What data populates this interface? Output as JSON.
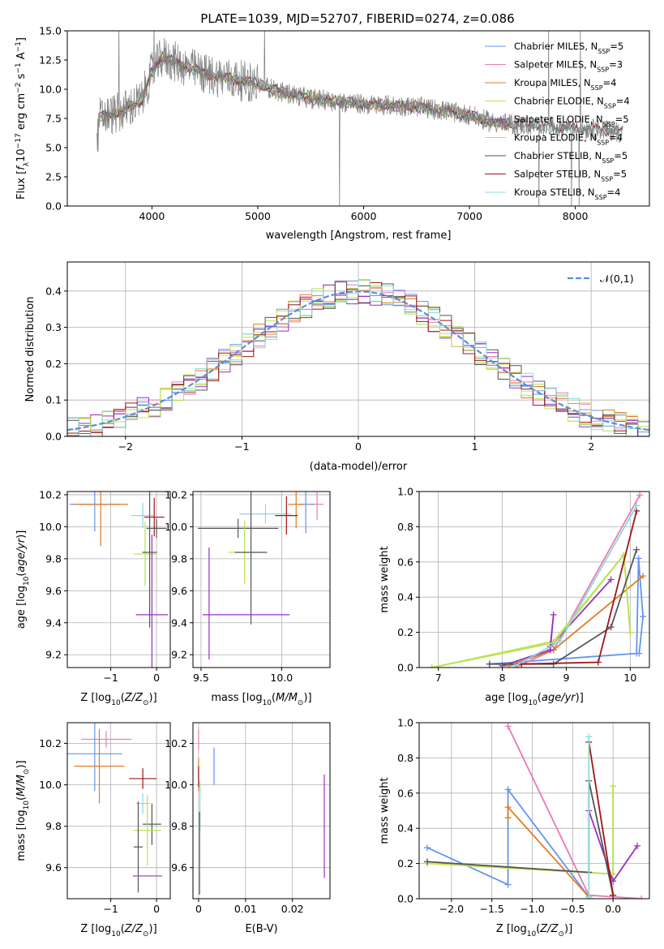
{
  "figure_title": "PLATE=1039, MJD=52707, FIBERID=0274, z=0.086",
  "series": [
    {
      "name": "Chabrier MILES",
      "nssp": "5",
      "color": "#6495ed"
    },
    {
      "name": "Salpeter MILES",
      "nssp": "3",
      "color": "#e87bb4"
    },
    {
      "name": "Kroupa MILES",
      "nssp": "4",
      "color": "#e07b26"
    },
    {
      "name": "Chabrier ELODIE",
      "nssp": "4",
      "color": "#c5e45a"
    },
    {
      "name": "Salpeter ELODIE",
      "nssp": "5",
      "color": "#9a32c0"
    },
    {
      "name": "Kroupa ELODIE",
      "nssp": "4",
      "color": "#b6e34e"
    },
    {
      "name": "Chabrier STELIB",
      "nssp": "5",
      "color": "#555555"
    },
    {
      "name": "Salpeter STELIB",
      "nssp": "5",
      "color": "#a01418"
    },
    {
      "name": "Kroupa STELIB",
      "nssp": "4",
      "color": "#8fd8dc"
    }
  ],
  "chart_data": [
    {
      "type": "line",
      "id": "spectrum",
      "title": "PLATE=1039, MJD=52707, FIBERID=0274, z=0.086",
      "xlabel": "wavelength [Angstrom, rest frame]",
      "ylabel": "Flux [f_λ 10^-17 erg cm^-2 s^-1 A^-1]",
      "xlim": [
        3200,
        8700
      ],
      "ylim": [
        0,
        15
      ],
      "xticks": [
        4000,
        5000,
        6000,
        7000,
        8000
      ],
      "yticks": [
        0.0,
        2.5,
        5.0,
        7.5,
        10.0,
        12.5,
        15.0
      ],
      "grid": false,
      "legend": "top-right",
      "data_envelope": {
        "x": [
          3500,
          3700,
          3900,
          4000,
          4100,
          4300,
          4500,
          4800,
          5000,
          5200,
          5500,
          5800,
          6000,
          6300,
          6500,
          6800,
          7000,
          7200,
          7400,
          7700,
          8000,
          8300,
          8450
        ],
        "y": [
          7.6,
          8.0,
          9.0,
          11.5,
          12.8,
          12.0,
          11.3,
          10.8,
          10.5,
          9.8,
          9.2,
          8.9,
          8.7,
          8.6,
          8.5,
          8.1,
          7.8,
          7.2,
          7.0,
          6.8,
          6.7,
          6.5,
          6.3
        ]
      }
    },
    {
      "type": "bar",
      "id": "residuals",
      "xlabel": "(data-model)/error",
      "ylabel": "Normed distribution",
      "xlim": [
        -2.5,
        2.5
      ],
      "ylim": [
        0,
        0.48
      ],
      "xticks": [
        -2,
        -1,
        0,
        1,
        2
      ],
      "yticks": [
        0.0,
        0.1,
        0.2,
        0.3,
        0.4
      ],
      "grid": true,
      "legend": "top-right",
      "reference_label": "N(0,1)",
      "bin_width": 0.1
    },
    {
      "type": "scatter",
      "id": "age_vs_Z",
      "xlabel": "Z [log10(Z/Z_sun)]",
      "ylabel": "age [log10(age/yr)]",
      "xlim": [
        -1.95,
        0.3
      ],
      "ylim": [
        9.12,
        10.22
      ],
      "xticks": [
        -1,
        0
      ],
      "yticks": [
        9.2,
        9.4,
        9.6,
        9.8,
        10.0,
        10.2
      ],
      "grid": true,
      "points": [
        {
          "series": "Chabrier MILES",
          "x": -1.35,
          "xerr": 0.55,
          "y": 10.14,
          "yerr": 0.17
        },
        {
          "series": "Kroupa MILES",
          "x": -1.22,
          "xerr": 0.6,
          "y": 10.14,
          "yerr": 0.26
        },
        {
          "series": "Kroupa STELIB",
          "x": -0.3,
          "xerr": 0.25,
          "y": 10.07,
          "yerr": 0.08
        },
        {
          "series": "Salpeter STELIB",
          "x": -0.05,
          "xerr": 0.22,
          "y": 10.06,
          "yerr": 0.12
        },
        {
          "series": "Chabrier STELIB",
          "x": 0.0,
          "xerr": 0.22,
          "y": 9.99,
          "yerr": 0.06
        },
        {
          "series": "Kroupa ELODIE",
          "x": -0.25,
          "xerr": 0.25,
          "y": 9.83,
          "yerr": 0.2
        },
        {
          "series": "Chabrier STELIB",
          "x": -0.15,
          "xerr": 0.16,
          "y": 9.84,
          "yerr": 0.47
        },
        {
          "series": "Salpeter ELODIE",
          "x": -0.1,
          "xerr": 0.35,
          "y": 9.45,
          "yerr": 0.5
        }
      ]
    },
    {
      "type": "scatter",
      "id": "age_vs_mass",
      "xlabel": "mass [log10(M/M_sun)]",
      "ylabel": "",
      "xlim": [
        9.45,
        10.3
      ],
      "ylim": [
        9.12,
        10.22
      ],
      "xticks": [
        9.5,
        10.0
      ],
      "yticks": [
        9.2,
        9.4,
        9.6,
        9.8,
        10.0,
        10.2
      ],
      "grid": true,
      "points": [
        {
          "series": "Salpeter MILES",
          "x": 10.22,
          "xerr": 0.04,
          "y": 10.14,
          "yerr": 0.1
        },
        {
          "series": "Chabrier MILES",
          "x": 10.15,
          "xerr": 0.05,
          "y": 10.14,
          "yerr": 0.18
        },
        {
          "series": "Kroupa MILES",
          "x": 10.09,
          "xerr": 0.05,
          "y": 10.14,
          "yerr": 0.15
        },
        {
          "series": "Kroupa STELIB",
          "x": 9.9,
          "xerr": 0.16,
          "y": 10.08,
          "yerr": 0.06
        },
        {
          "series": "Salpeter STELIB",
          "x": 10.03,
          "xerr": 0.07,
          "y": 10.07,
          "yerr": 0.12
        },
        {
          "series": "Chabrier STELIB",
          "x": 9.73,
          "xerr": 0.25,
          "y": 9.99,
          "yerr": 0.06
        },
        {
          "series": "Kroupa ELODIE",
          "x": 9.77,
          "xerr": 0.1,
          "y": 9.84,
          "yerr": 0.2
        },
        {
          "series": "Chabrier STELIB",
          "x": 9.81,
          "xerr": 0.1,
          "y": 9.84,
          "yerr": 0.45
        },
        {
          "series": "Salpeter ELODIE",
          "x": 9.55,
          "xerr": 0.0,
          "y": 9.52,
          "yerr": 0.35
        },
        {
          "series": "Salpeter ELODIE",
          "x": 9.78,
          "xerr": 0.27,
          "y": 9.45,
          "yerr": 0.0
        }
      ]
    },
    {
      "type": "line",
      "id": "massweight_vs_age",
      "xlabel": "age [log10(age/yr)]",
      "ylabel": "mass weight",
      "xlim": [
        6.7,
        10.3
      ],
      "ylim": [
        0,
        1
      ],
      "xticks": [
        7,
        8,
        9,
        10
      ],
      "yticks": [
        0.0,
        0.2,
        0.4,
        0.6,
        0.8,
        1.0
      ],
      "grid": true,
      "lines": [
        {
          "series": "Chabrier MILES",
          "x": [
            7.8,
            10.1,
            10.13,
            10.2,
            10.14
          ],
          "y": [
            0.02,
            0.08,
            0.62,
            0.29,
            0.08
          ]
        },
        {
          "series": "Salpeter MILES",
          "x": [
            8.2,
            8.8,
            10.15
          ],
          "y": [
            0.0,
            0.1,
            0.98
          ]
        },
        {
          "series": "Kroupa MILES",
          "x": [
            8.1,
            8.8,
            10.2
          ],
          "y": [
            0.01,
            0.1,
            0.52
          ]
        },
        {
          "series": "Chabrier ELODIE",
          "x": [
            6.9,
            8.8,
            9.9,
            10.0
          ],
          "y": [
            0.0,
            0.15,
            0.64,
            0.2
          ]
        },
        {
          "series": "Salpeter ELODIE",
          "x": [
            8.0,
            8.75,
            8.8,
            8.75,
            9.7
          ],
          "y": [
            0.01,
            0.1,
            0.3,
            0.12,
            0.5
          ]
        },
        {
          "series": "Kroupa ELODIE",
          "x": [
            6.9,
            8.8,
            9.9,
            10.0
          ],
          "y": [
            0.0,
            0.14,
            0.64,
            0.2
          ]
        },
        {
          "series": "Chabrier STELIB",
          "x": [
            7.8,
            8.8,
            9.7,
            10.1
          ],
          "y": [
            0.02,
            0.02,
            0.23,
            0.67
          ]
        },
        {
          "series": "Salpeter STELIB",
          "x": [
            8.3,
            9.5,
            10.1
          ],
          "y": [
            0.02,
            0.03,
            0.89
          ]
        },
        {
          "series": "Kroupa STELIB",
          "x": [
            8.2,
            8.9,
            10.1
          ],
          "y": [
            0.01,
            0.15,
            0.92
          ]
        }
      ]
    },
    {
      "type": "scatter",
      "id": "mass_vs_Z",
      "xlabel": "Z [log10(Z/Z_sun)]",
      "ylabel": "mass [log10(M/M_sun)]",
      "xlim": [
        -1.95,
        0.3
      ],
      "ylim": [
        9.45,
        10.3
      ],
      "xticks": [
        -1,
        0
      ],
      "yticks": [
        9.6,
        9.8,
        10.0,
        10.2
      ],
      "grid": true,
      "points": [
        {
          "series": "Salpeter MILES",
          "x": -1.1,
          "xerr": 0.55,
          "y": 10.22,
          "yerr": 0.04
        },
        {
          "series": "Chabrier MILES",
          "x": -1.35,
          "xerr": 0.6,
          "y": 10.15,
          "yerr": 0.18
        },
        {
          "series": "Kroupa MILES",
          "x": -1.25,
          "xerr": 0.55,
          "y": 10.09,
          "yerr": 0.18
        },
        {
          "series": "Salpeter STELIB",
          "x": -0.3,
          "xerr": 0.3,
          "y": 10.03,
          "yerr": 0.05
        },
        {
          "series": "Kroupa STELIB",
          "x": -0.3,
          "xerr": 0.15,
          "y": 9.91,
          "yerr": 0.05
        },
        {
          "series": "Chabrier STELIB",
          "x": -0.1,
          "xerr": 0.2,
          "y": 9.81,
          "yerr": 0.1
        },
        {
          "series": "Kroupa ELODIE",
          "x": -0.2,
          "xerr": 0.3,
          "y": 9.78,
          "yerr": 0.17
        },
        {
          "series": "Chabrier STELIB",
          "x": -0.4,
          "xerr": 0.1,
          "y": 9.7,
          "yerr": 0.22
        },
        {
          "series": "Salpeter ELODIE",
          "x": -0.2,
          "xerr": 0.32,
          "y": 9.56,
          "yerr": 0.0
        }
      ]
    },
    {
      "type": "scatter",
      "id": "mass_vs_ebv",
      "xlabel": "E(B-V)",
      "ylabel": "",
      "xlim": [
        -0.0012,
        0.028
      ],
      "ylim": [
        9.45,
        10.3
      ],
      "xticks": [
        0.0,
        0.01,
        0.02
      ],
      "yticks": [
        9.6,
        9.8,
        10.0,
        10.2
      ],
      "grid": true,
      "points": [
        {
          "series": "Salpeter MILES",
          "x": 0.0,
          "xerr": 0,
          "y": 10.22,
          "yerr": 0.05
        },
        {
          "series": "Chabrier MILES",
          "x": 0.0033,
          "xerr": 0,
          "y": 10.09,
          "yerr": 0.09
        },
        {
          "series": "Kroupa MILES",
          "x": 0.0,
          "xerr": 0,
          "y": 10.05,
          "yerr": 0.08
        },
        {
          "series": "Salpeter STELIB",
          "x": 0.0,
          "xerr": 0,
          "y": 10.04,
          "yerr": 0.05
        },
        {
          "series": "Kroupa STELIB",
          "x": 0.0003,
          "xerr": 0,
          "y": 9.9,
          "yerr": 0.12
        },
        {
          "series": "Chabrier STELIB",
          "x": 0.0002,
          "xerr": 0,
          "y": 9.67,
          "yerr": 0.2
        },
        {
          "series": "Salpeter ELODIE",
          "x": 0.0268,
          "xerr": 0,
          "y": 9.8,
          "yerr": 0.25
        }
      ]
    },
    {
      "type": "line",
      "id": "massweight_vs_Z",
      "xlabel": "Z [log10(Z/Z_sun)]",
      "ylabel": "mass weight",
      "xlim": [
        -2.4,
        0.45
      ],
      "ylim": [
        0,
        1
      ],
      "xticks": [
        -2.0,
        -1.5,
        -1.0,
        -0.5,
        0.0
      ],
      "yticks": [
        0.0,
        0.2,
        0.4,
        0.6,
        0.8,
        1.0
      ],
      "grid": true,
      "lines": [
        {
          "series": "Chabrier MILES",
          "x": [
            -2.3,
            -1.3,
            -1.3,
            -0.3,
            -0.3
          ],
          "y": [
            0.29,
            0.08,
            0.62,
            0.01,
            0.0
          ]
        },
        {
          "series": "Salpeter MILES",
          "x": [
            -1.3,
            -0.3,
            0.35
          ],
          "y": [
            0.98,
            0.02,
            0.0
          ]
        },
        {
          "series": "Kroupa MILES",
          "x": [
            -1.3,
            -1.3,
            -0.3
          ],
          "y": [
            0.46,
            0.52,
            0.01
          ]
        },
        {
          "series": "Chabrier ELODIE",
          "x": [
            -2.3,
            0.0,
            0.0
          ],
          "y": [
            0.2,
            0.14,
            0.64
          ]
        },
        {
          "series": "Salpeter ELODIE",
          "x": [
            -0.3,
            0.0,
            0.3
          ],
          "y": [
            0.5,
            0.1,
            0.3
          ]
        },
        {
          "series": "Kroupa ELODIE",
          "x": [
            -2.3,
            0.0,
            0.0
          ],
          "y": [
            0.21,
            0.14,
            0.64
          ]
        },
        {
          "series": "Chabrier STELIB",
          "x": [
            -2.3,
            -0.3,
            -0.3,
            0.0
          ],
          "y": [
            0.21,
            0.15,
            0.67,
            0.02
          ]
        },
        {
          "series": "Salpeter STELIB",
          "x": [
            -0.3,
            0.0
          ],
          "y": [
            0.89,
            0.02
          ]
        },
        {
          "series": "Kroupa STELIB",
          "x": [
            -0.3,
            -0.3
          ],
          "y": [
            0.01,
            0.92
          ]
        }
      ]
    }
  ]
}
